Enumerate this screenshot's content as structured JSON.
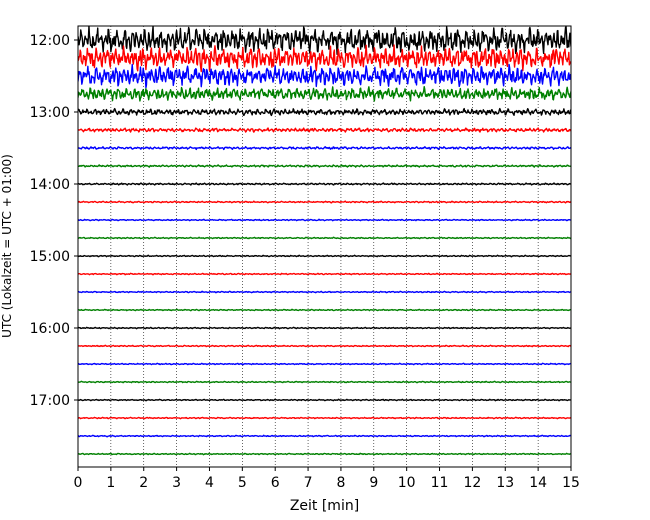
{
  "chart_data": {
    "type": "line",
    "xlabel": "Zeit  [min]",
    "ylabel": "UTC (Lokalzeit = UTC + 01:00)",
    "xlim": [
      0,
      15
    ],
    "x_ticks": [
      "0",
      "1",
      "2",
      "3",
      "4",
      "5",
      "6",
      "7",
      "8",
      "9",
      "10",
      "11",
      "12",
      "13",
      "14",
      "15"
    ],
    "y_ticks": [
      "12:00",
      "13:00",
      "14:00",
      "15:00",
      "16:00",
      "17:00"
    ],
    "grid": "vertical-dotted",
    "color_cycle": [
      "#000000",
      "#ff0000",
      "#0000ff",
      "#008000"
    ],
    "traces": [
      {
        "start": "12:00",
        "amplitude": 10
      },
      {
        "start": "12:15",
        "amplitude": 9
      },
      {
        "start": "12:30",
        "amplitude": 8
      },
      {
        "start": "12:45",
        "amplitude": 5
      },
      {
        "start": "13:00",
        "amplitude": 2.5
      },
      {
        "start": "13:15",
        "amplitude": 1.5
      },
      {
        "start": "13:30",
        "amplitude": 1.0
      },
      {
        "start": "13:45",
        "amplitude": 0.8
      },
      {
        "start": "14:00",
        "amplitude": 0.7
      },
      {
        "start": "14:15",
        "amplitude": 0.6
      },
      {
        "start": "14:30",
        "amplitude": 0.5
      },
      {
        "start": "14:45",
        "amplitude": 0.5
      },
      {
        "start": "15:00",
        "amplitude": 0.5
      },
      {
        "start": "15:15",
        "amplitude": 0.5
      },
      {
        "start": "15:30",
        "amplitude": 0.5
      },
      {
        "start": "15:45",
        "amplitude": 0.5
      },
      {
        "start": "16:00",
        "amplitude": 0.5
      },
      {
        "start": "16:15",
        "amplitude": 0.5
      },
      {
        "start": "16:30",
        "amplitude": 0.5
      },
      {
        "start": "16:45",
        "amplitude": 0.5
      },
      {
        "start": "17:00",
        "amplitude": 0.5
      },
      {
        "start": "17:15",
        "amplitude": 0.5
      },
      {
        "start": "17:30",
        "amplitude": 0.5
      },
      {
        "start": "17:45",
        "amplitude": 0.5
      }
    ]
  }
}
